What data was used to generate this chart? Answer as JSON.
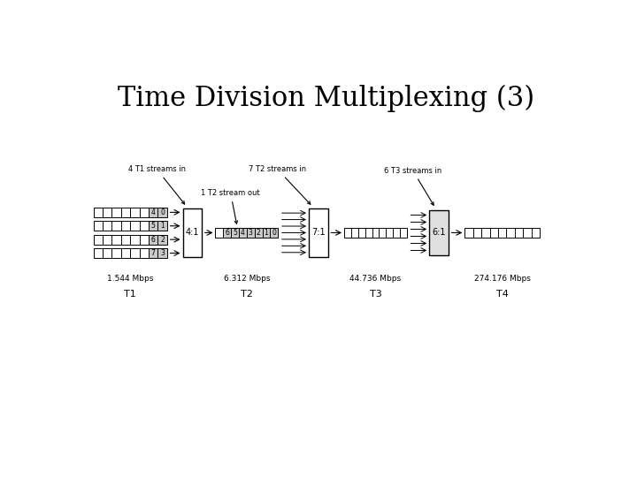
{
  "title": "Time Division Multiplexing (3)",
  "title_fontsize": 22,
  "background_color": "#ffffff",
  "stream_labels": [
    [
      "4",
      "0"
    ],
    [
      "5",
      "1"
    ],
    [
      "6",
      "2"
    ],
    [
      "7",
      "3"
    ]
  ],
  "t2_frame_labels": [
    "6",
    "5",
    "4",
    "3",
    "2",
    "1",
    "0"
  ],
  "stage_labels": [
    "T1",
    "T2",
    "T3",
    "T4"
  ],
  "speed_labels": [
    "1.544 Mbps",
    "6.312 Mbps",
    "44.736 Mbps",
    "274.176 Mbps"
  ],
  "mux_labels": [
    "4:1",
    "7:1",
    "6:1"
  ],
  "stream_notes": [
    "4 T1 streams in",
    "7 T2 streams in",
    "6 T3 streams in"
  ],
  "output_note": "1 T2 stream out"
}
